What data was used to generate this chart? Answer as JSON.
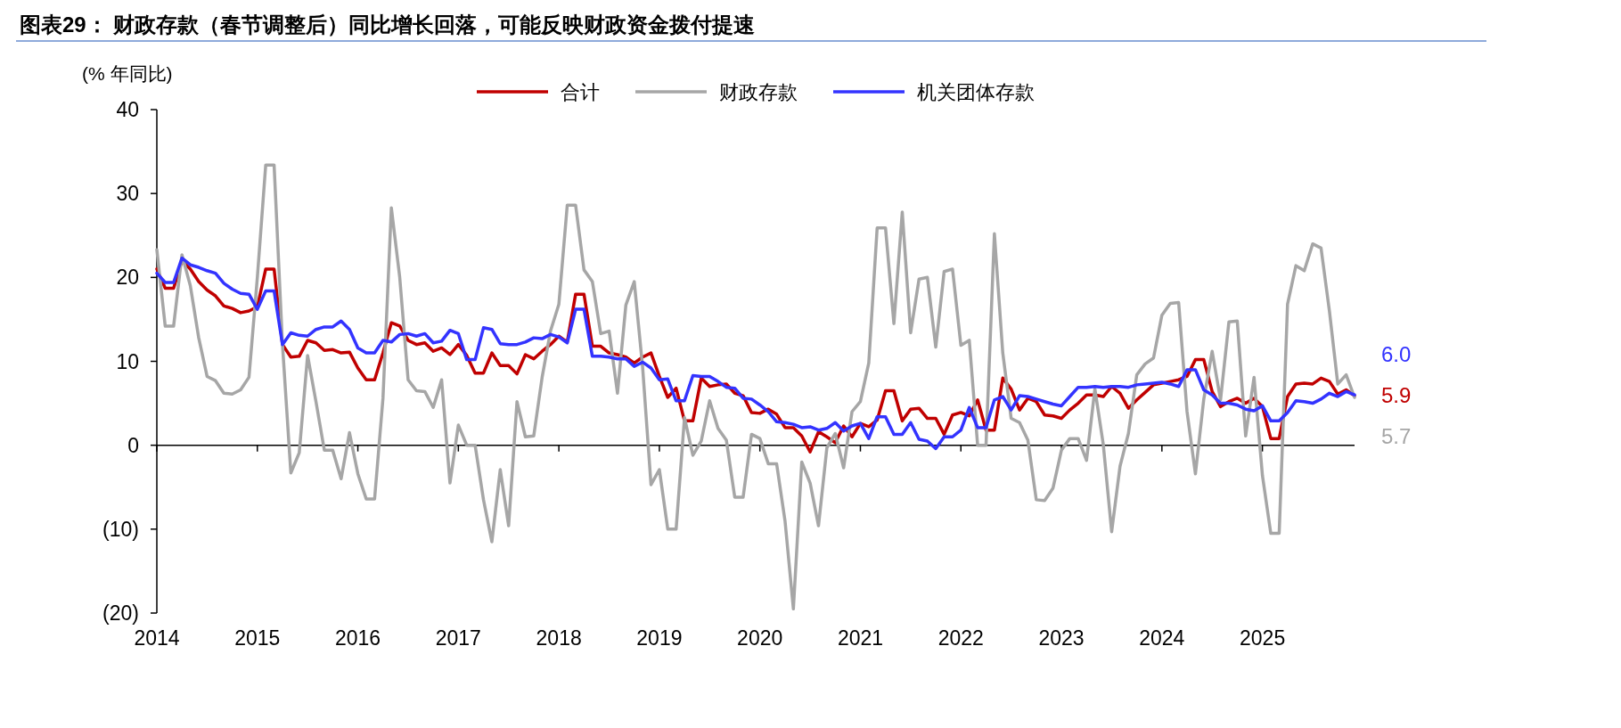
{
  "chart_data": {
    "type": "line",
    "title": "图表29：  财政存款（春节调整后）同比增长回落，可能反映财政资金拨付提速",
    "ylabel": "(% 年同比)",
    "x": [
      "2014-01",
      "2014-02",
      "2014-03",
      "2014-04",
      "2014-05",
      "2014-06",
      "2014-07",
      "2014-08",
      "2014-09",
      "2014-10",
      "2014-11",
      "2014-12",
      "2015-01",
      "2015-02",
      "2015-03",
      "2015-04",
      "2015-05",
      "2015-06",
      "2015-07",
      "2015-08",
      "2015-09",
      "2015-10",
      "2015-11",
      "2015-12",
      "2016-01",
      "2016-02",
      "2016-03",
      "2016-04",
      "2016-05",
      "2016-06",
      "2016-07",
      "2016-08",
      "2016-09",
      "2016-10",
      "2016-11",
      "2016-12",
      "2017-01",
      "2017-02",
      "2017-03",
      "2017-04",
      "2017-05",
      "2017-06",
      "2017-07",
      "2017-08",
      "2017-09",
      "2017-10",
      "2017-11",
      "2017-12",
      "2018-01",
      "2018-02",
      "2018-03",
      "2018-04",
      "2018-05",
      "2018-06",
      "2018-07",
      "2018-08",
      "2018-09",
      "2018-10",
      "2018-11",
      "2018-12",
      "2019-01",
      "2019-02",
      "2019-03",
      "2019-04",
      "2019-05",
      "2019-06",
      "2019-07",
      "2019-08",
      "2019-09",
      "2019-10",
      "2019-11",
      "2019-12",
      "2020-01",
      "2020-02",
      "2020-03",
      "2020-04",
      "2020-05",
      "2020-06",
      "2020-07",
      "2020-08",
      "2020-09",
      "2020-10",
      "2020-11",
      "2020-12",
      "2021-01",
      "2021-02",
      "2021-03",
      "2021-04",
      "2021-05",
      "2021-06",
      "2021-07",
      "2021-08",
      "2021-09",
      "2021-10",
      "2021-11",
      "2021-12",
      "2022-01",
      "2022-02",
      "2022-03",
      "2022-04",
      "2022-05",
      "2022-06",
      "2022-07",
      "2022-08",
      "2022-09",
      "2022-10",
      "2022-11",
      "2022-12",
      "2023-01",
      "2023-02",
      "2023-03",
      "2023-04",
      "2023-05",
      "2023-06",
      "2023-07",
      "2023-08",
      "2023-09",
      "2023-10",
      "2023-11",
      "2023-12",
      "2024-01",
      "2024-02",
      "2024-03",
      "2024-04",
      "2024-05",
      "2024-06",
      "2024-07",
      "2024-08",
      "2024-09",
      "2024-10",
      "2024-11",
      "2024-12",
      "2025-01",
      "2025-02",
      "2025-03",
      "2025-04",
      "2025-05",
      "2025-06",
      "2025-07",
      "2025-08",
      "2025-09",
      "2025-10",
      "2025-11",
      "2025-12"
    ],
    "series": [
      {
        "name": "合计",
        "color": "#c00000",
        "values": [
          21,
          18.7,
          18.7,
          22,
          21,
          19.5,
          18.5,
          17.8,
          16.6,
          16.3,
          15.8,
          16,
          16.5,
          21,
          21,
          12,
          10.5,
          10.6,
          12.5,
          12.2,
          11.3,
          11.4,
          11,
          11.1,
          9.2,
          7.8,
          7.8,
          11,
          14.6,
          14.2,
          12.5,
          12,
          12.2,
          11.2,
          11.6,
          10.8,
          12,
          10.7,
          8.6,
          8.6,
          11,
          9.5,
          9.5,
          8.5,
          10.8,
          10.3,
          11.2,
          12,
          13,
          12.3,
          18,
          18,
          11.8,
          11.8,
          11,
          10.8,
          10.5,
          9.8,
          10.5,
          11,
          8.2,
          5.7,
          6.8,
          2.9,
          2.9,
          8,
          7,
          7.2,
          7.3,
          6.2,
          5.9,
          3.9,
          3.8,
          4.3,
          3.7,
          2.1,
          2.1,
          1.1,
          -0.8,
          1.6,
          1,
          0.3,
          2.3,
          1,
          2.6,
          2.2,
          3,
          6.5,
          6.5,
          2.9,
          4.3,
          4.4,
          3.2,
          3.2,
          1.3,
          3.6,
          3.9,
          3.5,
          5.4,
          1.8,
          1.8,
          8,
          6.7,
          4.2,
          5.6,
          5.2,
          3.6,
          3.5,
          3.2,
          4.2,
          5,
          6,
          6,
          5.8,
          7,
          6.2,
          4.4,
          5.4,
          6.3,
          7.2,
          7.4,
          7.6,
          7.8,
          8.2,
          10.2,
          10.2,
          6.4,
          4.6,
          5.2,
          5.6,
          5,
          5.6,
          4.6,
          0.8,
          0.8,
          5.8,
          7.3,
          7.4,
          7.3,
          8,
          7.6,
          6.1,
          6.6,
          5.9
        ],
        "value_labels": [
          null,
          null,
          null,
          null,
          null,
          null,
          null,
          null,
          null,
          null,
          null,
          null,
          null,
          null,
          null,
          null,
          null,
          null,
          null,
          null,
          null,
          null,
          null,
          null,
          null,
          null,
          null,
          null,
          null,
          null,
          null,
          null,
          null,
          null,
          null,
          null,
          null,
          null,
          null,
          null,
          null,
          null,
          null,
          null,
          null,
          null,
          null,
          null,
          null,
          null,
          null,
          null,
          null,
          null,
          null,
          null,
          null,
          null,
          null,
          null,
          null,
          null,
          null,
          null,
          null,
          null,
          null,
          null,
          null,
          null,
          null,
          null,
          null,
          null,
          null,
          null,
          null,
          null,
          null,
          null,
          null,
          null,
          null,
          null,
          null,
          null,
          null,
          null,
          null,
          null,
          null,
          null,
          null,
          null,
          null,
          null,
          null,
          null,
          null,
          null,
          null,
          null,
          null,
          null,
          null,
          null,
          null,
          null,
          null,
          null,
          null,
          null,
          null,
          null,
          null,
          null,
          null,
          null,
          null,
          null,
          null,
          null,
          null,
          null,
          null,
          null,
          null,
          null,
          null,
          null,
          null,
          null,
          null,
          null,
          null,
          null,
          null,
          null,
          null,
          null,
          null,
          null,
          null,
          "5.9"
        ]
      },
      {
        "name": "财政存款",
        "color": "#a6a6a6",
        "values": [
          23.3,
          14.2,
          14.2,
          22.7,
          19,
          12.8,
          8.2,
          7.7,
          6.2,
          6.1,
          6.6,
          8.1,
          20,
          33.4,
          33.4,
          12,
          -3.3,
          -0.9,
          10.7,
          5.2,
          -0.6,
          -0.6,
          -4,
          1.5,
          -3.4,
          -6.4,
          -6.4,
          5.6,
          28.3,
          20,
          7.8,
          6.5,
          6.4,
          4.5,
          7.8,
          -4.5,
          2.4,
          0,
          0,
          -6.5,
          -11.5,
          -2.9,
          -9.6,
          5.2,
          1,
          1.1,
          8.1,
          13.6,
          16.8,
          28.6,
          28.6,
          20.9,
          19.5,
          13.3,
          13.6,
          6.2,
          16.7,
          19.5,
          9.3,
          -4.7,
          -2.9,
          -10,
          -10,
          3.3,
          -1.2,
          0.5,
          5.3,
          2,
          0.6,
          -6.2,
          -6.2,
          1.3,
          0.8,
          -2.2,
          -2.2,
          -9,
          -19.5,
          -2,
          -4.5,
          -9.6,
          -0.3,
          1.4,
          -2.7,
          4,
          5.2,
          9.8,
          25.9,
          25.9,
          14.5,
          27.8,
          13.4,
          19.8,
          20,
          11.7,
          20.7,
          21,
          11.9,
          12.5,
          0,
          0,
          25.2,
          11,
          3.2,
          2.7,
          0.6,
          -6.5,
          -6.6,
          -5.1,
          -0.6,
          0.8,
          0.8,
          -1.8,
          6.7,
          0.1,
          -10.3,
          -2.5,
          1.4,
          8.4,
          9.7,
          10.4,
          15.5,
          16.9,
          17,
          4,
          -3.4,
          5.5,
          11.2,
          5.4,
          14.7,
          14.8,
          1.1,
          8.1,
          -3.6,
          -10.5,
          -10.5,
          16.8,
          21.4,
          20.8,
          24,
          23.5,
          16,
          7.3,
          8.4,
          5.7
        ],
        "value_labels": [
          null,
          null,
          null,
          null,
          null,
          null,
          null,
          null,
          null,
          null,
          null,
          null,
          null,
          null,
          null,
          null,
          null,
          null,
          null,
          null,
          null,
          null,
          null,
          null,
          null,
          null,
          null,
          null,
          null,
          null,
          null,
          null,
          null,
          null,
          null,
          null,
          null,
          null,
          null,
          null,
          null,
          null,
          null,
          null,
          null,
          null,
          null,
          null,
          null,
          null,
          null,
          null,
          null,
          null,
          null,
          null,
          null,
          null,
          null,
          null,
          null,
          null,
          null,
          null,
          null,
          null,
          null,
          null,
          null,
          null,
          null,
          null,
          null,
          null,
          null,
          null,
          null,
          null,
          null,
          null,
          null,
          null,
          null,
          null,
          null,
          null,
          null,
          null,
          null,
          null,
          null,
          null,
          null,
          null,
          null,
          null,
          null,
          null,
          null,
          null,
          null,
          null,
          null,
          null,
          null,
          null,
          null,
          null,
          null,
          null,
          null,
          null,
          null,
          null,
          null,
          null,
          null,
          null,
          null,
          null,
          null,
          null,
          null,
          null,
          null,
          null,
          null,
          null,
          null,
          null,
          null,
          null,
          null,
          null,
          null,
          null,
          null,
          null,
          null,
          null,
          null,
          null,
          null,
          "5.7"
        ]
      },
      {
        "name": "机关团体存款",
        "color": "#3333ff",
        "values": [
          20.5,
          19.4,
          19.4,
          22.3,
          21.5,
          21.2,
          20.8,
          20.5,
          19.3,
          18.6,
          18.1,
          18,
          16.2,
          18.4,
          18.4,
          12,
          13.4,
          13.1,
          13,
          13.8,
          14.1,
          14.1,
          14.8,
          13.8,
          11.6,
          11,
          11,
          12.5,
          12.3,
          13.2,
          13.3,
          13,
          13.3,
          12.2,
          12.4,
          13.7,
          13.3,
          10.2,
          10.2,
          14,
          13.8,
          12.1,
          12,
          12,
          12.3,
          12.8,
          12.7,
          13.2,
          12.9,
          12.2,
          16.2,
          16.2,
          10.6,
          10.6,
          10.5,
          10.3,
          10.3,
          9.4,
          9.9,
          9.2,
          7.8,
          7.9,
          5.3,
          5.3,
          8.3,
          8.2,
          8.2,
          7.6,
          6.9,
          6.8,
          5.6,
          5.5,
          4.8,
          4,
          2.8,
          2.7,
          2.5,
          2.1,
          2.2,
          1.8,
          2,
          2.7,
          1.7,
          2.3,
          2.6,
          0.8,
          3.4,
          3.4,
          1.3,
          1.3,
          2.7,
          0.7,
          0.5,
          -0.4,
          1,
          1,
          1.8,
          4.5,
          2.1,
          2.1,
          5.4,
          5.8,
          4.2,
          5.9,
          5.8,
          5.5,
          5.2,
          4.9,
          4.7,
          5.8,
          6.9,
          6.9,
          7,
          6.9,
          7,
          7,
          6.9,
          7.2,
          7.3,
          7.4,
          7.5,
          7.3,
          7,
          9,
          9,
          6.6,
          6,
          5,
          5,
          4.8,
          4.3,
          4.1,
          4.7,
          2.9,
          2.9,
          3.9,
          5.3,
          5.2,
          5,
          5.5,
          6.2,
          5.8,
          6.4,
          6
        ],
        "value_labels": [
          null,
          null,
          null,
          null,
          null,
          null,
          null,
          null,
          null,
          null,
          null,
          null,
          null,
          null,
          null,
          null,
          null,
          null,
          null,
          null,
          null,
          null,
          null,
          null,
          null,
          null,
          null,
          null,
          null,
          null,
          null,
          null,
          null,
          null,
          null,
          null,
          null,
          null,
          null,
          null,
          null,
          null,
          null,
          null,
          null,
          null,
          null,
          null,
          null,
          null,
          null,
          null,
          null,
          null,
          null,
          null,
          null,
          null,
          null,
          null,
          null,
          null,
          null,
          null,
          null,
          null,
          null,
          null,
          null,
          null,
          null,
          null,
          null,
          null,
          null,
          null,
          null,
          null,
          null,
          null,
          null,
          null,
          null,
          null,
          null,
          null,
          null,
          null,
          null,
          null,
          null,
          null,
          null,
          null,
          null,
          null,
          null,
          null,
          null,
          null,
          null,
          null,
          null,
          null,
          null,
          null,
          null,
          null,
          null,
          null,
          null,
          null,
          null,
          null,
          null,
          null,
          null,
          null,
          null,
          null,
          null,
          null,
          null,
          null,
          null,
          null,
          null,
          null,
          null,
          null,
          null,
          null,
          null,
          null,
          null,
          null,
          null,
          null,
          null,
          null,
          null,
          null,
          null,
          "6.0"
        ]
      }
    ],
    "xlim": [
      "2014-01",
      "2025-12"
    ],
    "xticks": [
      "2014",
      "2015",
      "2016",
      "2017",
      "2018",
      "2019",
      "2020",
      "2021",
      "2022",
      "2023",
      "2024",
      "2025"
    ],
    "ylim": [
      -20,
      40
    ],
    "yticks": [
      40,
      30,
      20,
      10,
      0,
      {
        "value": -10,
        "label": "(10)"
      },
      {
        "value": -20,
        "label": "(20)"
      }
    ],
    "legend": "top",
    "marker": "none",
    "line_style": "solid"
  }
}
